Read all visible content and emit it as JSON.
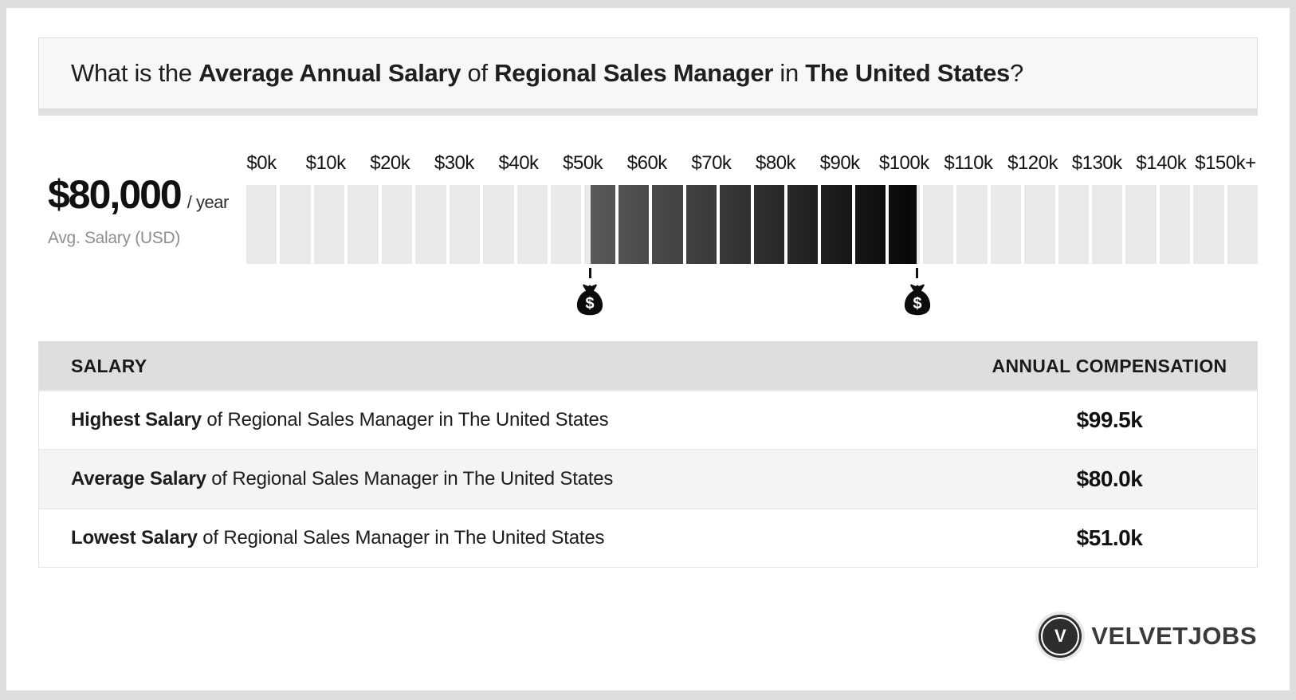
{
  "question": {
    "parts": [
      {
        "text": "What is the ",
        "bold": false
      },
      {
        "text": "Average Annual Salary",
        "bold": true
      },
      {
        "text": " of ",
        "bold": false
      },
      {
        "text": "Regional Sales Manager",
        "bold": true
      },
      {
        "text": " in ",
        "bold": false
      },
      {
        "text": "The United States",
        "bold": true
      },
      {
        "text": "?",
        "bold": false
      }
    ]
  },
  "salary_summary": {
    "amount": "$80,000",
    "suffix": "/ year",
    "caption": "Avg. Salary (USD)"
  },
  "chart_data": {
    "type": "bar",
    "title": "Salary range gauge for Regional Sales Manager in The United States",
    "unit": "USD thousands / year",
    "axis": {
      "min_k": 0,
      "max_k": 150,
      "tick_labels": [
        "$0k",
        "$10k",
        "$20k",
        "$30k",
        "$40k",
        "$50k",
        "$60k",
        "$70k",
        "$80k",
        "$90k",
        "$100k",
        "$110k",
        "$120k",
        "$130k",
        "$140k",
        "$150k+"
      ],
      "segment_step_k": 5,
      "segment_count": 30
    },
    "highlight": {
      "low_k": 51.0,
      "high_k": 99.5,
      "average_k": 80.0,
      "gradient_start": "#5a5a5a",
      "gradient_end": "#060606"
    },
    "segment_light_color": "#e9e9e9",
    "markers": [
      {
        "name": "lowest-salary-marker",
        "value_k": 51.0,
        "icon": "money-bag-icon"
      },
      {
        "name": "highest-salary-marker",
        "value_k": 99.5,
        "icon": "money-bag-icon"
      }
    ]
  },
  "table": {
    "columns": [
      "SALARY",
      "ANNUAL COMPENSATION"
    ],
    "rows": [
      {
        "bold": "Highest Salary",
        "rest": " of Regional Sales Manager in The United States",
        "value": "$99.5k"
      },
      {
        "bold": "Average Salary",
        "rest": " of Regional Sales Manager in The United States",
        "value": "$80.0k"
      },
      {
        "bold": "Lowest Salary",
        "rest": " of Regional Sales Manager in The United States",
        "value": "$51.0k"
      }
    ]
  },
  "logo": {
    "monogram": "V",
    "text": "VELVETJOBS"
  },
  "colors": {
    "page_bg": "#dedede",
    "card_bg": "#ffffff",
    "question_box_bg": "#f7f7f7",
    "table_header_bg": "#dedede",
    "row_alt_bg": "#f4f4f4"
  }
}
